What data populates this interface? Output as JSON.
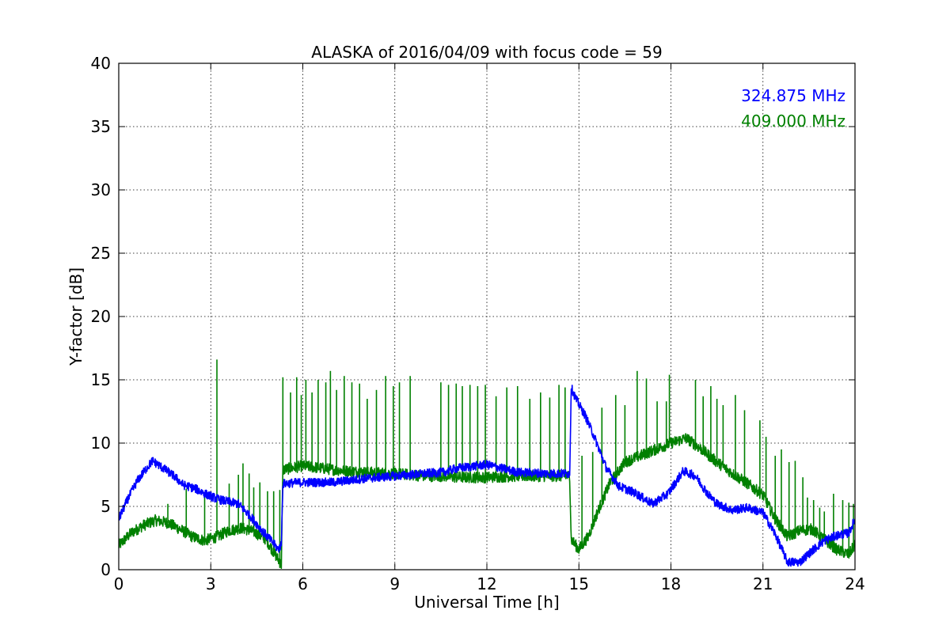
{
  "chart_data": {
    "type": "line",
    "title": "ALASKA of 2016/04/09 with focus code = 59",
    "xlabel": "Universal Time [h]",
    "ylabel": "Y-factor [dB]",
    "xlim": [
      0,
      24
    ],
    "ylim": [
      0,
      40
    ],
    "xticks": [
      0,
      3,
      6,
      9,
      12,
      15,
      18,
      21,
      24
    ],
    "yticks": [
      0,
      5,
      10,
      15,
      20,
      25,
      30,
      35,
      40
    ],
    "grid": true,
    "legend_position": "top-right",
    "series": [
      {
        "name": "324.875 MHz",
        "color": "#0000ff",
        "noise": 0.35,
        "x": [
          0,
          0.3,
          0.6,
          0.9,
          1.1,
          1.4,
          1.8,
          2.1,
          2.5,
          2.9,
          3.2,
          3.5,
          3.9,
          4.3,
          4.7,
          5.0,
          5.2,
          5.3,
          5.35,
          6.0,
          7.0,
          8.0,
          9.0,
          10.0,
          10.6,
          11.0,
          12.0,
          13.0,
          14.0,
          14.7,
          14.75,
          14.9,
          15.2,
          15.5,
          15.9,
          16.3,
          16.8,
          17.4,
          17.9,
          18.4,
          18.8,
          19.2,
          19.5,
          20.0,
          20.5,
          21.0,
          21.4,
          21.8,
          22.2,
          22.6,
          23.0,
          23.4,
          23.8,
          24.0
        ],
        "y": [
          4.0,
          5.6,
          7.0,
          8.0,
          8.6,
          8.1,
          7.4,
          6.7,
          6.4,
          5.9,
          5.6,
          5.4,
          5.2,
          4.2,
          3.0,
          2.2,
          1.6,
          2.0,
          6.8,
          6.9,
          6.9,
          7.2,
          7.4,
          7.6,
          7.7,
          8.0,
          8.3,
          7.7,
          7.6,
          7.6,
          14.4,
          13.5,
          12.2,
          10.5,
          8.0,
          6.6,
          6.1,
          5.2,
          6.0,
          7.8,
          7.4,
          6.0,
          5.2,
          4.7,
          4.9,
          4.5,
          2.8,
          0.6,
          0.6,
          1.5,
          2.3,
          2.7,
          2.9,
          4.0
        ]
      },
      {
        "name": "409.000 MHz",
        "color": "#008000",
        "noise": 0.45,
        "x": [
          0,
          0.4,
          0.8,
          1.2,
          1.6,
          2.0,
          2.4,
          2.8,
          3.2,
          3.6,
          4.0,
          4.4,
          4.8,
          5.1,
          5.3,
          5.35,
          6.0,
          7.0,
          8.0,
          9.0,
          10.0,
          10.6,
          11.0,
          12.0,
          13.0,
          14.0,
          14.7,
          14.75,
          15.0,
          15.3,
          15.6,
          16.0,
          16.5,
          17.0,
          17.5,
          18.0,
          18.5,
          19.0,
          19.5,
          20.0,
          20.5,
          21.0,
          21.4,
          21.8,
          22.2,
          22.6,
          23.0,
          23.4,
          23.8,
          24.0
        ],
        "y": [
          1.9,
          2.9,
          3.5,
          3.9,
          3.7,
          3.2,
          2.6,
          2.3,
          2.6,
          3.1,
          3.3,
          3.0,
          2.4,
          1.2,
          0.4,
          7.9,
          8.2,
          7.9,
          7.7,
          7.6,
          7.4,
          7.4,
          7.3,
          7.3,
          7.4,
          7.4,
          7.4,
          2.4,
          1.6,
          2.6,
          4.5,
          6.8,
          8.5,
          9.0,
          9.5,
          10.0,
          10.4,
          9.5,
          8.5,
          7.6,
          6.8,
          5.9,
          4.0,
          2.6,
          3.1,
          3.2,
          2.4,
          1.6,
          1.2,
          2.0
        ],
        "spikes": [
          [
            1.6,
            5.2
          ],
          [
            2.2,
            6.4
          ],
          [
            2.8,
            6.0
          ],
          [
            3.2,
            16.6
          ],
          [
            3.6,
            6.8
          ],
          [
            3.9,
            7.5
          ],
          [
            4.05,
            8.4
          ],
          [
            4.25,
            7.6
          ],
          [
            4.4,
            6.5
          ],
          [
            4.6,
            6.9
          ],
          [
            4.85,
            6.2
          ],
          [
            5.05,
            6.2
          ],
          [
            5.25,
            6.3
          ],
          [
            5.35,
            15.2
          ],
          [
            5.6,
            14.0
          ],
          [
            5.8,
            15.2
          ],
          [
            5.95,
            13.8
          ],
          [
            6.1,
            15.0
          ],
          [
            6.3,
            14.0
          ],
          [
            6.5,
            15.0
          ],
          [
            6.75,
            14.8
          ],
          [
            6.9,
            15.7
          ],
          [
            7.1,
            14.2
          ],
          [
            7.35,
            15.3
          ],
          [
            7.6,
            14.8
          ],
          [
            7.85,
            14.7
          ],
          [
            8.1,
            13.5
          ],
          [
            8.4,
            14.2
          ],
          [
            8.7,
            15.3
          ],
          [
            8.95,
            14.5
          ],
          [
            9.15,
            14.8
          ],
          [
            9.5,
            15.3
          ],
          [
            10.5,
            14.8
          ],
          [
            10.75,
            14.6
          ],
          [
            11.0,
            14.7
          ],
          [
            11.2,
            14.5
          ],
          [
            11.45,
            14.6
          ],
          [
            11.7,
            14.5
          ],
          [
            11.95,
            14.6
          ],
          [
            12.3,
            13.7
          ],
          [
            12.65,
            14.4
          ],
          [
            13.0,
            14.5
          ],
          [
            13.4,
            13.5
          ],
          [
            13.75,
            14.0
          ],
          [
            14.05,
            13.6
          ],
          [
            14.35,
            14.6
          ],
          [
            14.55,
            14.4
          ],
          [
            15.1,
            9.0
          ],
          [
            15.45,
            9.3
          ],
          [
            15.75,
            12.8
          ],
          [
            16.2,
            13.8
          ],
          [
            16.5,
            13.0
          ],
          [
            16.9,
            15.7
          ],
          [
            17.2,
            15.1
          ],
          [
            17.55,
            13.3
          ],
          [
            17.85,
            13.3
          ],
          [
            17.95,
            15.4
          ],
          [
            18.8,
            15.0
          ],
          [
            19.05,
            13.7
          ],
          [
            19.3,
            14.5
          ],
          [
            19.5,
            13.5
          ],
          [
            19.7,
            13.0
          ],
          [
            20.1,
            13.8
          ],
          [
            20.4,
            12.6
          ],
          [
            20.9,
            11.8
          ],
          [
            21.1,
            10.5
          ],
          [
            21.4,
            9.0
          ],
          [
            21.6,
            9.5
          ],
          [
            21.85,
            8.5
          ],
          [
            22.05,
            8.6
          ],
          [
            22.3,
            7.3
          ],
          [
            22.45,
            5.7
          ],
          [
            22.65,
            5.5
          ],
          [
            22.85,
            4.9
          ],
          [
            23.0,
            4.6
          ],
          [
            23.3,
            6.0
          ],
          [
            23.6,
            5.5
          ],
          [
            23.8,
            5.3
          ],
          [
            23.95,
            5.2
          ]
        ]
      }
    ]
  }
}
